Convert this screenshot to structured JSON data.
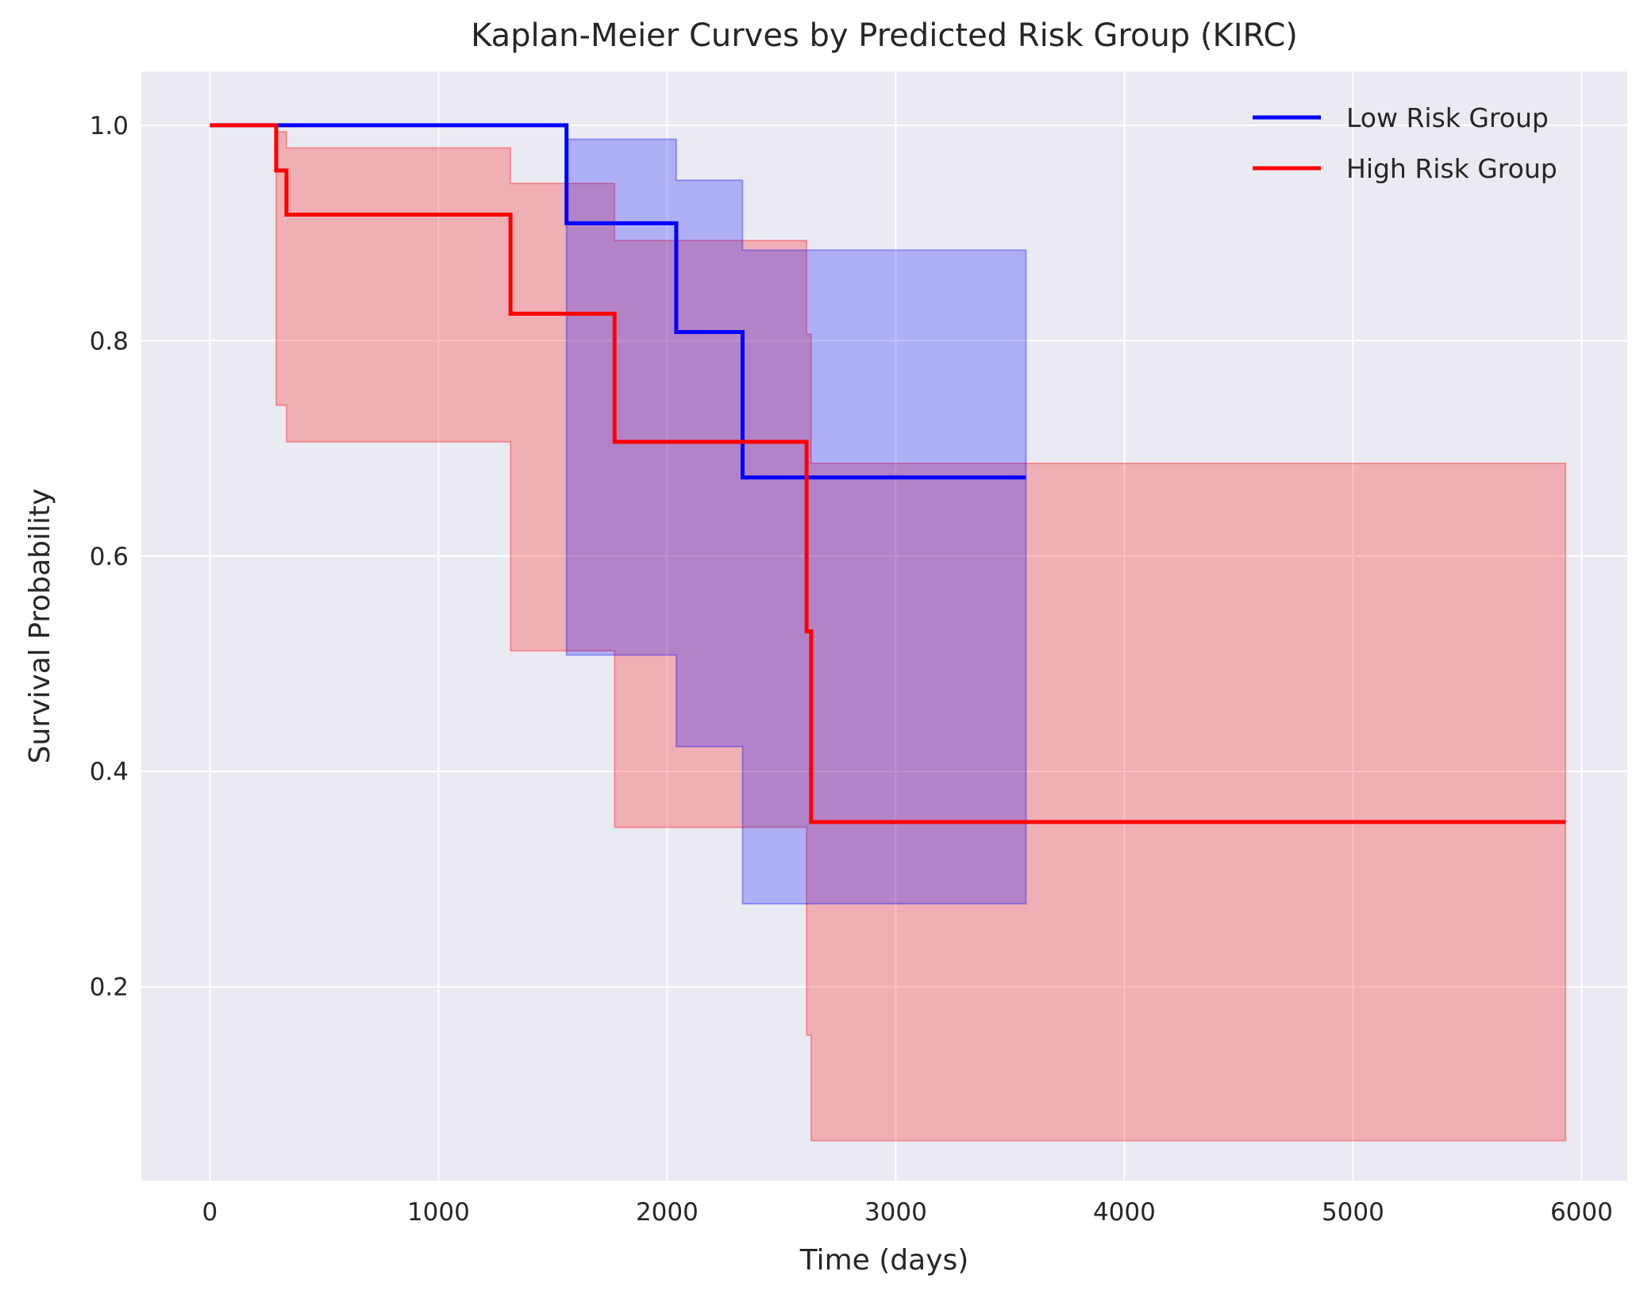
{
  "chart_data": {
    "type": "line",
    "title": "Kaplan-Meier Curves by Predicted Risk Group (KIRC)",
    "xlabel": "Time (days)",
    "ylabel": "Survival Probability",
    "xlim": [
      -300,
      6200
    ],
    "ylim": [
      0.02,
      1.05
    ],
    "xticks": [
      0,
      1000,
      2000,
      3000,
      4000,
      5000,
      6000
    ],
    "yticks": [
      0.2,
      0.4,
      0.6,
      0.8,
      1.0
    ],
    "xtick_labels": [
      "0",
      "1000",
      "2000",
      "3000",
      "4000",
      "5000",
      "6000"
    ],
    "ytick_labels": [
      "0.2",
      "0.4",
      "0.6",
      "0.8",
      "1.0"
    ],
    "grid": true,
    "legend_position": "top-right",
    "series": [
      {
        "name": "Low Risk Group",
        "color": "#0000ff",
        "step": "post",
        "x": [
          0,
          1560,
          2040,
          2330,
          3570
        ],
        "y": [
          1.0,
          0.909,
          0.808,
          0.673,
          0.673
        ],
        "ci_lower": [
          1.0,
          0.508,
          0.423,
          0.277,
          0.277
        ],
        "ci_upper": [
          1.0,
          0.987,
          0.949,
          0.884,
          0.884
        ]
      },
      {
        "name": "High Risk Group",
        "color": "#ff0000",
        "step": "post",
        "x": [
          0,
          290,
          335,
          1315,
          1770,
          2610,
          2630,
          5930
        ],
        "y": [
          1.0,
          0.958,
          0.917,
          0.825,
          0.706,
          0.53,
          0.353,
          0.353
        ],
        "ci_lower": [
          1.0,
          0.74,
          0.706,
          0.512,
          0.348,
          0.155,
          0.057,
          0.057
        ],
        "ci_upper": [
          1.0,
          0.994,
          0.979,
          0.946,
          0.893,
          0.806,
          0.686,
          0.686
        ]
      }
    ]
  }
}
